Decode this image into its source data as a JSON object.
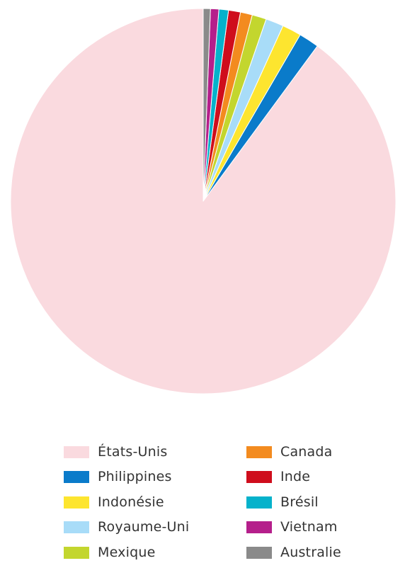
{
  "chart_data": {
    "type": "pie",
    "title": "",
    "start_angle_deg": 0,
    "direction": "counterclockwise",
    "legend_position": "bottom",
    "categories": [
      "États-Unis",
      "Philippines",
      "Indonésie",
      "Royaume-Uni",
      "Mexique",
      "Canada",
      "Inde",
      "Brésil",
      "Vietnam",
      "Australie"
    ],
    "values": [
      89.9,
      1.7,
      1.6,
      1.5,
      1.2,
      1.0,
      1.0,
      0.8,
      0.7,
      0.6
    ],
    "colors": [
      "#fadadf",
      "#0a7bca",
      "#fde52f",
      "#a8dcf8",
      "#c3d62e",
      "#f38b1f",
      "#cf0d1c",
      "#05b2cb",
      "#b51f8b",
      "#8a8a8a"
    ]
  }
}
